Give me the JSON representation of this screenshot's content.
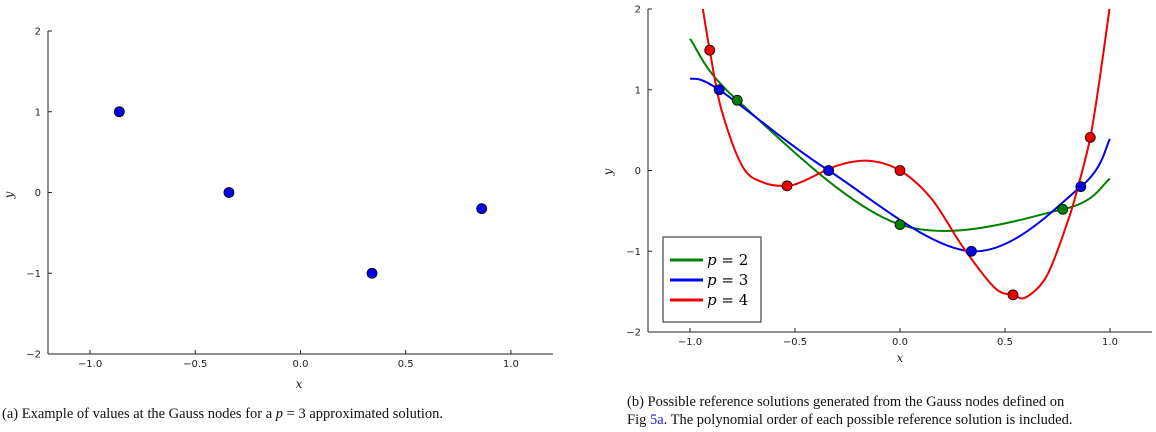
{
  "chart_data": [
    {
      "type": "scatter",
      "xlabel": "x",
      "ylabel": "y",
      "xlim": [
        -1.2,
        1.2
      ],
      "ylim": [
        -2,
        2
      ],
      "xticks": [
        "−1.0",
        "−0.5",
        "0.0",
        "0.5",
        "1.0"
      ],
      "xtick_values": [
        -1.0,
        -0.5,
        0.0,
        0.5,
        1.0
      ],
      "yticks": [
        "−2",
        "−1",
        "0",
        "1",
        "2"
      ],
      "ytick_values": [
        -2,
        -1,
        0,
        1,
        2
      ],
      "grid": false,
      "points": {
        "x": [
          -0.861,
          -0.34,
          0.34,
          0.861
        ],
        "y": [
          1.0,
          0.0,
          -1.0,
          -0.2
        ],
        "color": "#0000ee"
      }
    },
    {
      "type": "line",
      "xlabel": "x",
      "ylabel": "y",
      "xlim": [
        -1.2,
        1.2
      ],
      "ylim": [
        -2,
        2
      ],
      "xticks": [
        "−1.0",
        "−0.5",
        "0.0",
        "0.5",
        "1.0"
      ],
      "xtick_values": [
        -1.0,
        -0.5,
        0.0,
        0.5,
        1.0
      ],
      "yticks": [
        "−2",
        "−1",
        "0",
        "1",
        "2"
      ],
      "ytick_values": [
        -2,
        -1,
        0,
        1,
        2
      ],
      "grid": false,
      "legend_position": "bottom-left",
      "series": [
        {
          "name": "p = 2",
          "name_var": "p",
          "name_val": "2",
          "color": "#008000",
          "nodes_x": [
            -0.775,
            0.0,
            0.775
          ],
          "nodes_y": [
            0.87,
            -0.67,
            -0.48
          ],
          "curve_x": [
            -1.0,
            -0.775,
            0.0,
            0.775,
            1.0
          ],
          "curve_y": [
            1.63,
            0.87,
            -0.67,
            -0.48,
            -0.1
          ]
        },
        {
          "name": "p = 3",
          "name_var": "p",
          "name_val": "3",
          "color": "#0000ee",
          "nodes_x": [
            -0.861,
            -0.34,
            0.34,
            0.861
          ],
          "nodes_y": [
            1.0,
            0.0,
            -1.0,
            -0.2
          ],
          "curve_x": [
            -1.0,
            -0.861,
            -0.34,
            0.34,
            0.861,
            1.0
          ],
          "curve_y": [
            1.14,
            1.0,
            0.0,
            -1.0,
            -0.2,
            0.39
          ]
        },
        {
          "name": "p = 4",
          "name_var": "p",
          "name_val": "4",
          "color": "#ee0000",
          "nodes_x": [
            -0.906,
            -0.538,
            0.0,
            0.538,
            0.906
          ],
          "nodes_y": [
            1.49,
            -0.19,
            0.0,
            -1.54,
            0.41
          ],
          "curve_x": [
            -0.94,
            -0.906,
            -0.85,
            -0.75,
            -0.65,
            -0.538,
            -0.45,
            -0.3,
            -0.15,
            0.0,
            0.15,
            0.3,
            0.45,
            0.538,
            0.6,
            0.7,
            0.8,
            0.85,
            0.906,
            0.95,
            1.0
          ],
          "curve_y": [
            2.02,
            1.49,
            0.75,
            0.05,
            -0.15,
            -0.19,
            -0.12,
            0.06,
            0.12,
            0.0,
            -0.35,
            -0.95,
            -1.45,
            -1.54,
            -1.57,
            -1.3,
            -0.62,
            -0.18,
            0.41,
            1.12,
            2.05
          ]
        }
      ]
    }
  ],
  "captions": {
    "a": "(a) Example of values at the Gauss nodes for a p = 3 approximated solution.",
    "a_prefix": "(a) Example of values at the Gauss nodes for a ",
    "a_var": "p",
    "a_suffix": " = 3 approximated solution.",
    "b_line1": "(b) Possible reference solutions generated from the Gauss nodes defined on",
    "b_line2_prefix": "Fig ",
    "b_line2_ref": "5a",
    "b_line2_suffix": ". The polynomial order of each possible reference solution is included."
  }
}
